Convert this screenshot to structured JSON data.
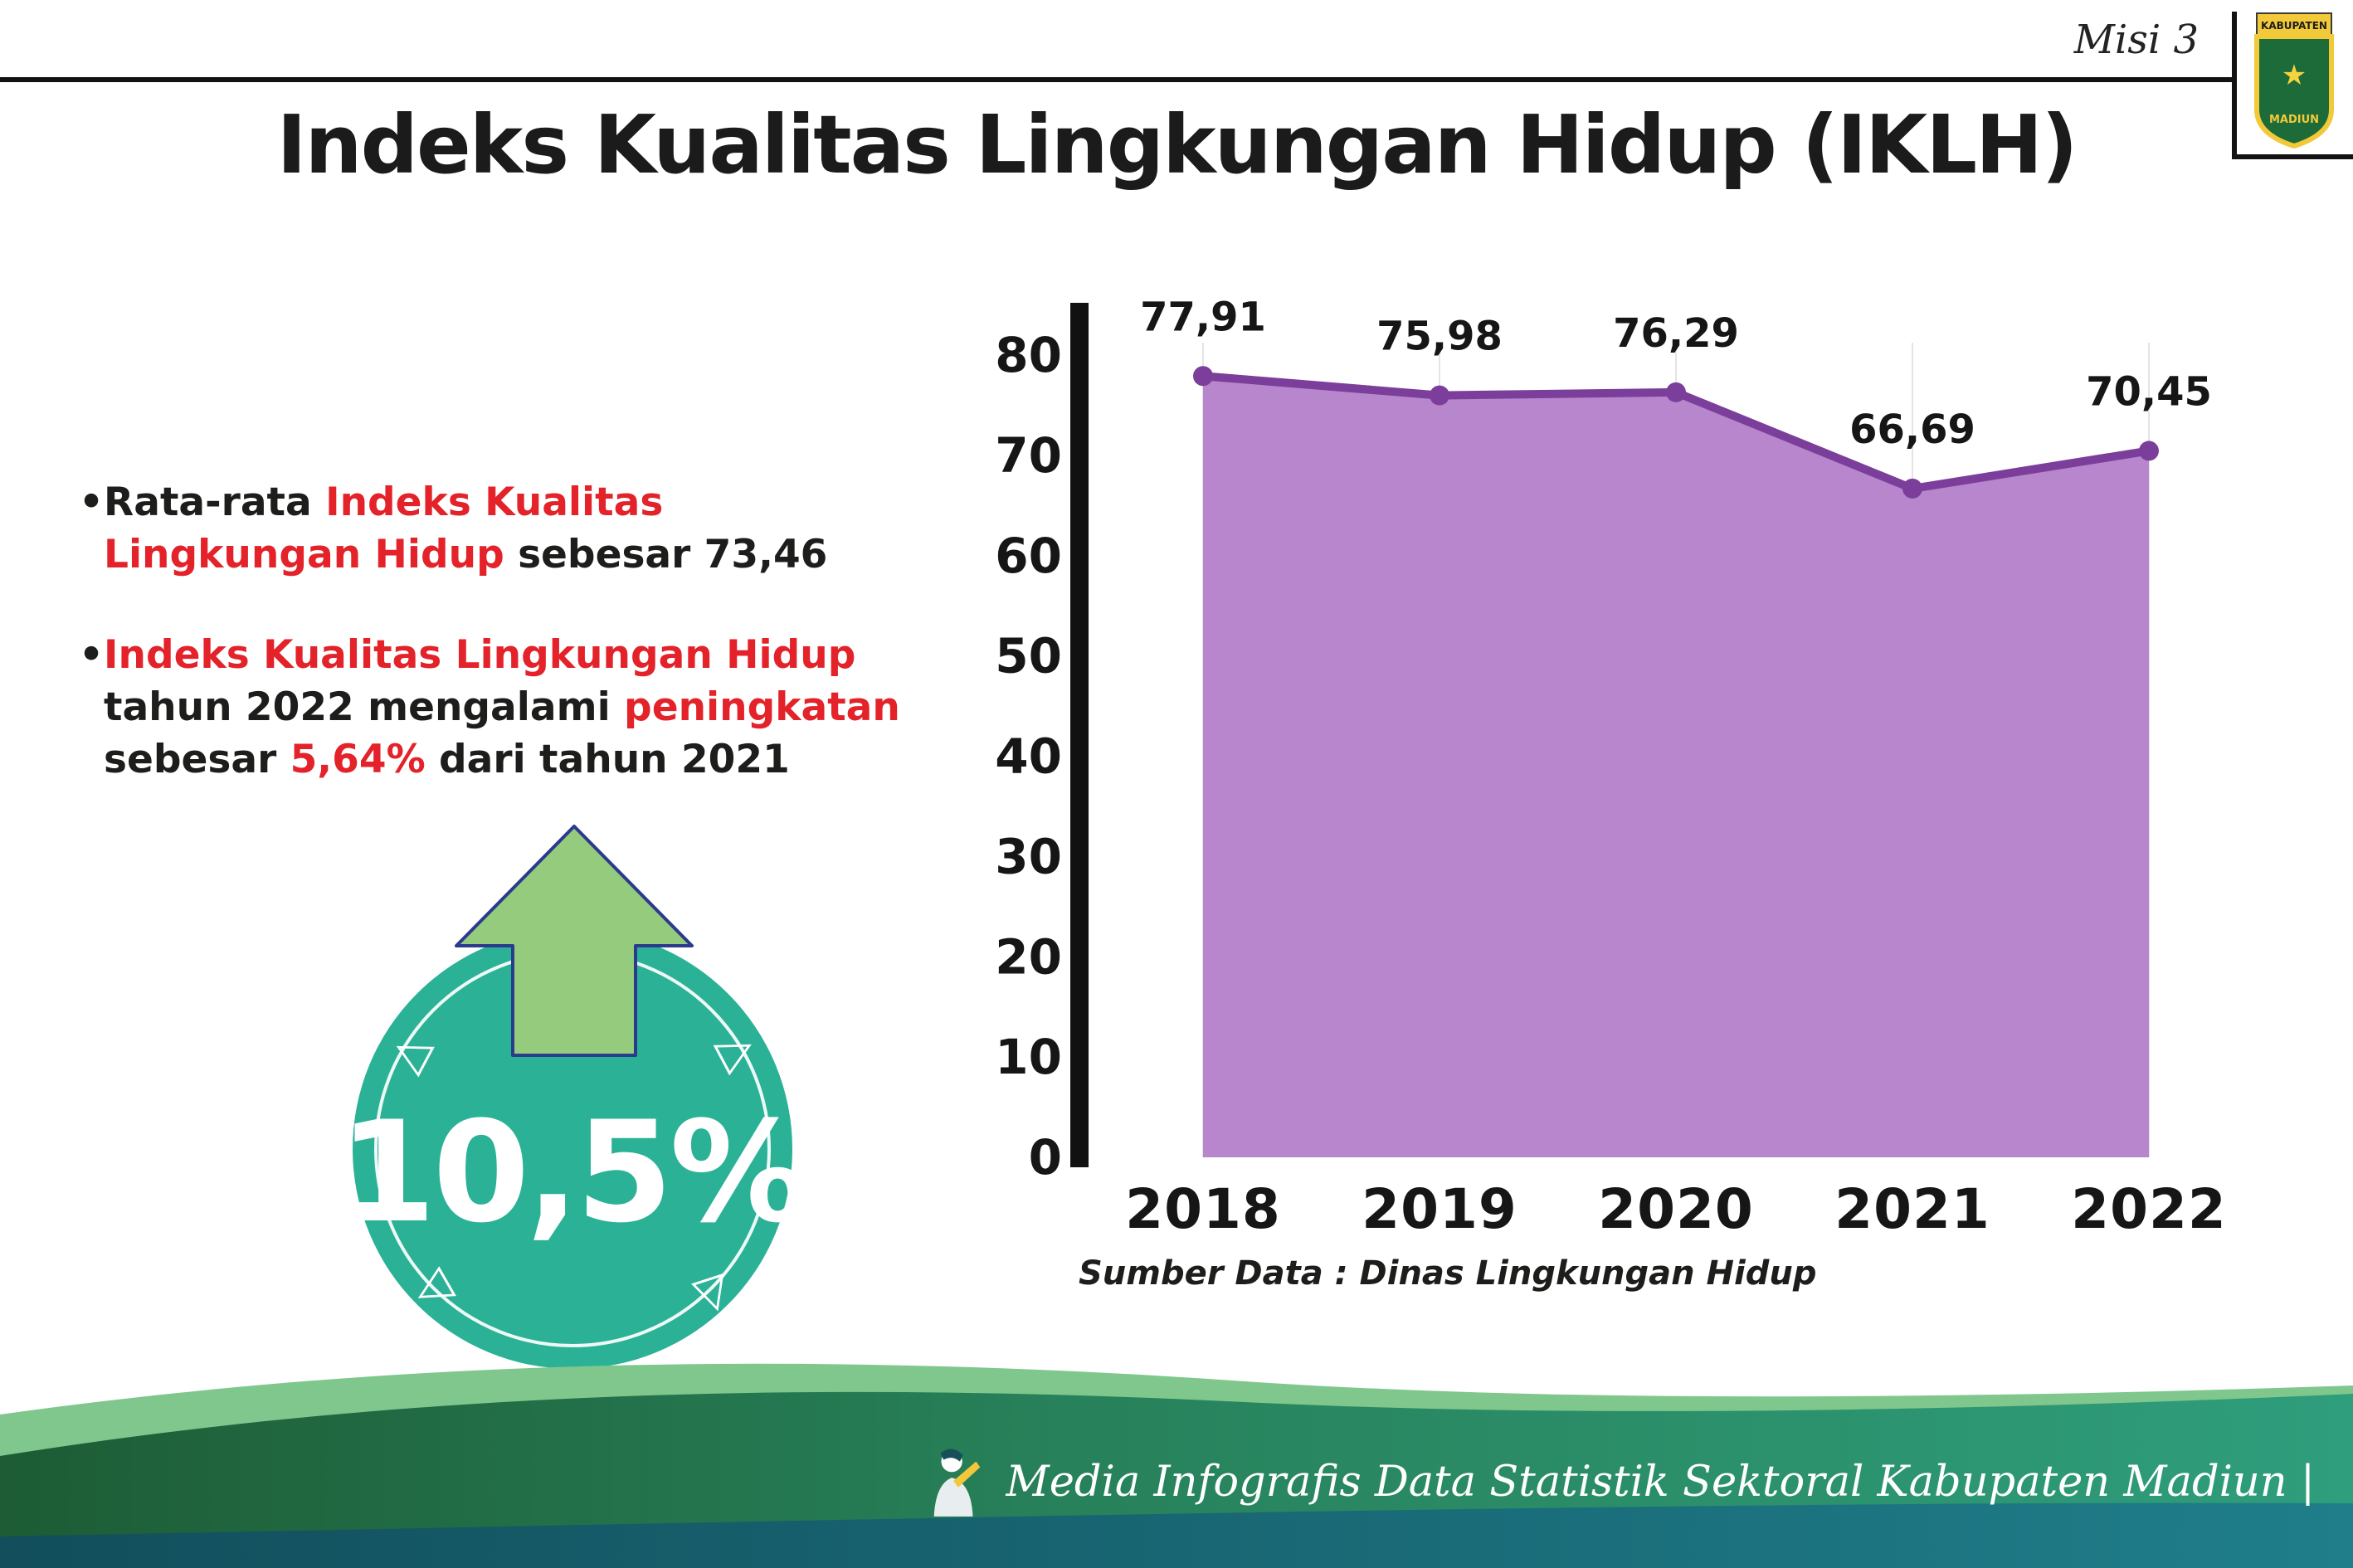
{
  "header": {
    "misi": "Misi 3",
    "title": "Indeks Kualitas Lingkungan Hidup (IKLH)",
    "logo": {
      "top": "KABUPATEN",
      "bottom": "MADIUN"
    }
  },
  "notes": {
    "bullet": "•",
    "b1": {
      "s1": "Rata-rata ",
      "s2": "Indeks Kualitas Lingkungan Hidup",
      "s3": " sebesar 73,46"
    },
    "b2": {
      "s1": "Indeks Kualitas Lingkungan Hidup",
      "s2": " tahun 2022 mengalami ",
      "s3": "peningkatan",
      "s4": " sebesar ",
      "s5": "5,64%",
      "s6": " dari tahun 2021"
    }
  },
  "badge": {
    "value": "10,5%"
  },
  "colors": {
    "accent_red": "#e3222a",
    "badge_teal": "#2bb296",
    "arrow_green": "#94cb7d",
    "purple_fill": "#b886cd",
    "purple_line": "#7b3f9b"
  },
  "chart_data": {
    "type": "area",
    "title": "Indeks Kualitas Lingkungan Hidup (IKLH)",
    "categories": [
      "2018",
      "2019",
      "2020",
      "2021",
      "2022"
    ],
    "values": [
      77.91,
      75.98,
      76.29,
      66.69,
      70.45
    ],
    "point_labels": [
      "77,91",
      "75,98",
      "76,29",
      "66,69",
      "70,45"
    ],
    "ylim": [
      0,
      80
    ],
    "yticks": [
      0,
      10,
      20,
      30,
      40,
      50,
      60,
      70,
      80
    ],
    "xlabel": "",
    "ylabel": "",
    "legend": "none",
    "grid": "vertical-faint",
    "fill_color": "#b886cd",
    "line_color": "#7b3f9b",
    "source": "Sumber Data : Dinas Lingkungan Hidup"
  },
  "footer": {
    "credit": "Media Infografis Data Statistik Sektoral Kabupaten Madiun |"
  }
}
